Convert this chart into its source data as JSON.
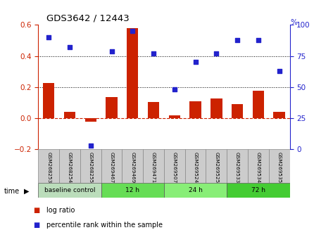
{
  "title": "GDS3642 / 12443",
  "samples": [
    "GSM268253",
    "GSM268254",
    "GSM268255",
    "GSM269467",
    "GSM269469",
    "GSM269471",
    "GSM269507",
    "GSM269524",
    "GSM269525",
    "GSM269533",
    "GSM269534",
    "GSM269535"
  ],
  "log_ratio": [
    0.225,
    0.04,
    -0.02,
    0.135,
    0.58,
    0.105,
    0.02,
    0.11,
    0.125,
    0.09,
    0.175,
    0.04
  ],
  "percentile_pct": [
    90,
    82,
    3,
    79,
    95,
    77,
    48,
    70,
    77,
    88,
    88,
    63
  ],
  "ylim_left": [
    -0.2,
    0.6
  ],
  "ylim_right": [
    0,
    100
  ],
  "yticks_left": [
    -0.2,
    0.0,
    0.2,
    0.4,
    0.6
  ],
  "yticks_right": [
    0,
    25,
    50,
    75,
    100
  ],
  "bar_color": "#cc2200",
  "dot_color": "#2222cc",
  "bar_width": 0.55,
  "groups": [
    {
      "label": "baseline control",
      "start": 0,
      "end": 3,
      "color": "#bbddbb"
    },
    {
      "label": "12 h",
      "start": 3,
      "end": 6,
      "color": "#66dd55"
    },
    {
      "label": "24 h",
      "start": 6,
      "end": 9,
      "color": "#88ee77"
    },
    {
      "label": "72 h",
      "start": 9,
      "end": 12,
      "color": "#44cc33"
    }
  ],
  "legend_items": [
    {
      "label": "log ratio",
      "color": "#cc2200"
    },
    {
      "label": "percentile rank within the sample",
      "color": "#2222cc"
    }
  ],
  "time_label": "time",
  "tick_label_color_left": "#cc2200",
  "tick_label_color_right": "#2222cc"
}
